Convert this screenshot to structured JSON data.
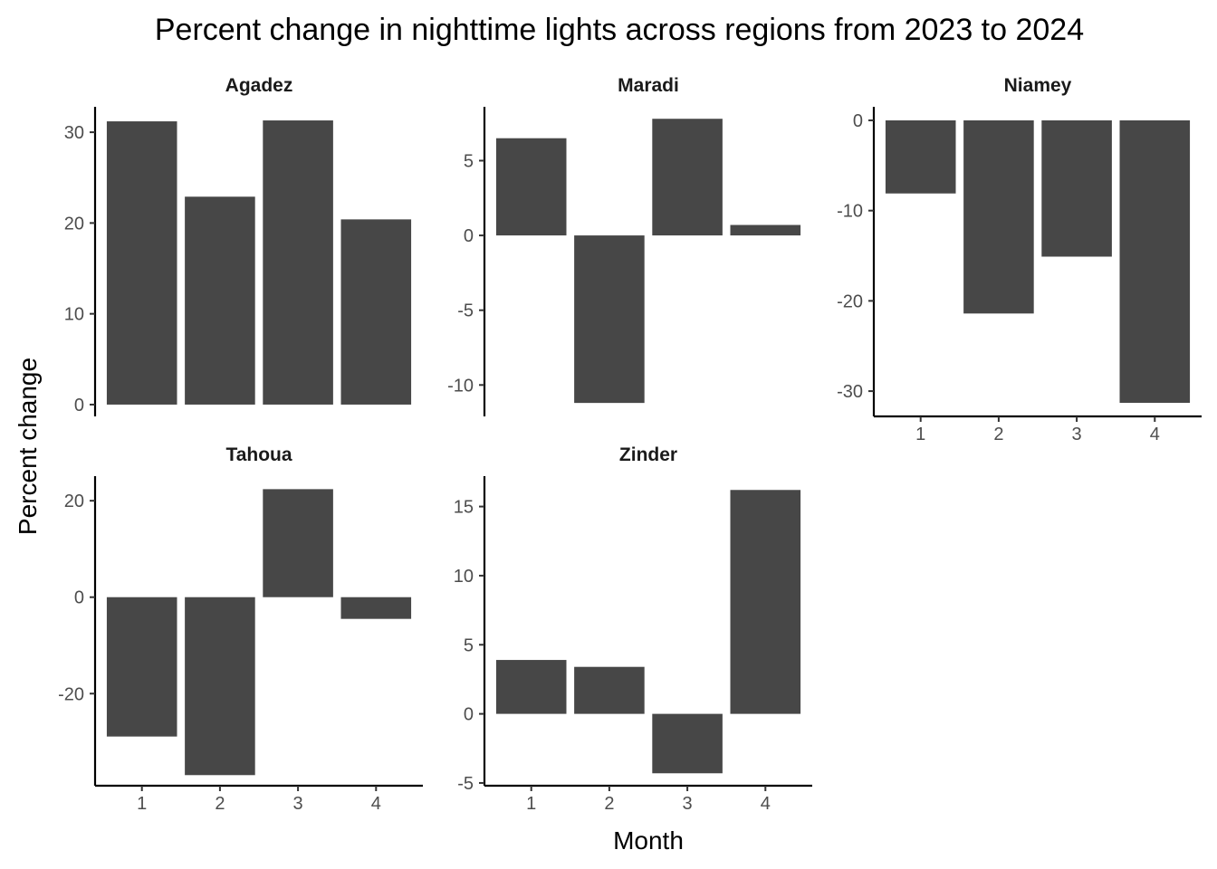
{
  "chart_data": {
    "type": "bar",
    "title": "Percent change in nighttime lights across regions from 2023 to 2024",
    "xlabel": "Month",
    "ylabel": "Percent change",
    "bar_color": "#474747",
    "grid": false,
    "legend": "none",
    "categories": [
      "1",
      "2",
      "3",
      "4"
    ],
    "facets": [
      {
        "name": "Agadez",
        "values": [
          31.2,
          22.9,
          31.3,
          20.4
        ],
        "ylim": [
          -1.3,
          32.8
        ],
        "yticks": [
          0,
          10,
          20,
          30
        ],
        "show_x": false
      },
      {
        "name": "Maradi",
        "values": [
          6.5,
          -11.2,
          7.8,
          0.7
        ],
        "ylim": [
          -12.1,
          8.6
        ],
        "yticks": [
          -10,
          -5,
          0,
          5
        ],
        "show_x": false
      },
      {
        "name": "Niamey",
        "values": [
          -8.1,
          -21.4,
          -15.1,
          -31.3
        ],
        "ylim": [
          -32.8,
          1.5
        ],
        "yticks": [
          -30,
          -20,
          -10,
          0
        ],
        "show_x": true
      },
      {
        "name": "Tahoua",
        "values": [
          -28.9,
          -36.9,
          22.4,
          -4.5
        ],
        "ylim": [
          -39.1,
          25.1
        ],
        "yticks": [
          -20,
          0,
          20
        ],
        "show_x": true
      },
      {
        "name": "Zinder",
        "values": [
          3.9,
          3.4,
          -4.3,
          16.2
        ],
        "ylim": [
          -5.2,
          17.2
        ],
        "yticks": [
          -5,
          0,
          5,
          10,
          15
        ],
        "show_x": true
      }
    ]
  }
}
